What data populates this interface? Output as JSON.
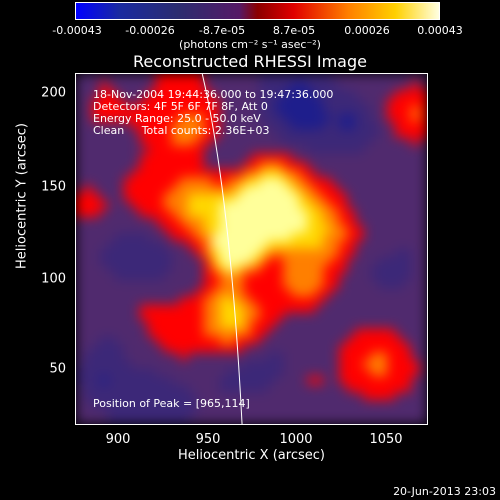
{
  "colorbar": {
    "ticks": [
      "-0.00043",
      "-0.00026",
      "-8.7e-05",
      "8.7e-05",
      "0.00026",
      "0.00043"
    ],
    "units": "(photons cm⁻² s⁻¹ asec⁻²)",
    "min": -0.00043,
    "max": 0.00043
  },
  "chart_data": {
    "type": "heatmap",
    "title": "Reconstructed RHESSI Image",
    "xlabel": "Heliocentric X (arcsec)",
    "ylabel": "Heliocentric Y (arcsec)",
    "xlim": [
      877,
      1068
    ],
    "ylim": [
      18,
      208
    ],
    "x_ticks": [
      "900",
      "950",
      "1000",
      "1050"
    ],
    "y_ticks": [
      "50",
      "100",
      "150",
      "200"
    ],
    "peak": [
      965,
      114
    ],
    "colormap": [
      "#0000ff",
      "#1e1e8c",
      "#3c2878",
      "#502a6e",
      "#ff0000",
      "#ff7f00",
      "#ffd700",
      "#ffff9a"
    ]
  },
  "annotations": {
    "time": "18-Nov-2004 19:44:36.000 to 19:47:36.000",
    "detectors": "Detectors: 4F 5F 6F 7F 8F, Att 0",
    "energy": "Energy Range: 25.0 - 50.0 keV",
    "clean": "Clean     Total counts: 2.36E+03",
    "peak_text": "Position of Peak = [965,114]"
  },
  "footer": "20-Jun-2013 23:03"
}
